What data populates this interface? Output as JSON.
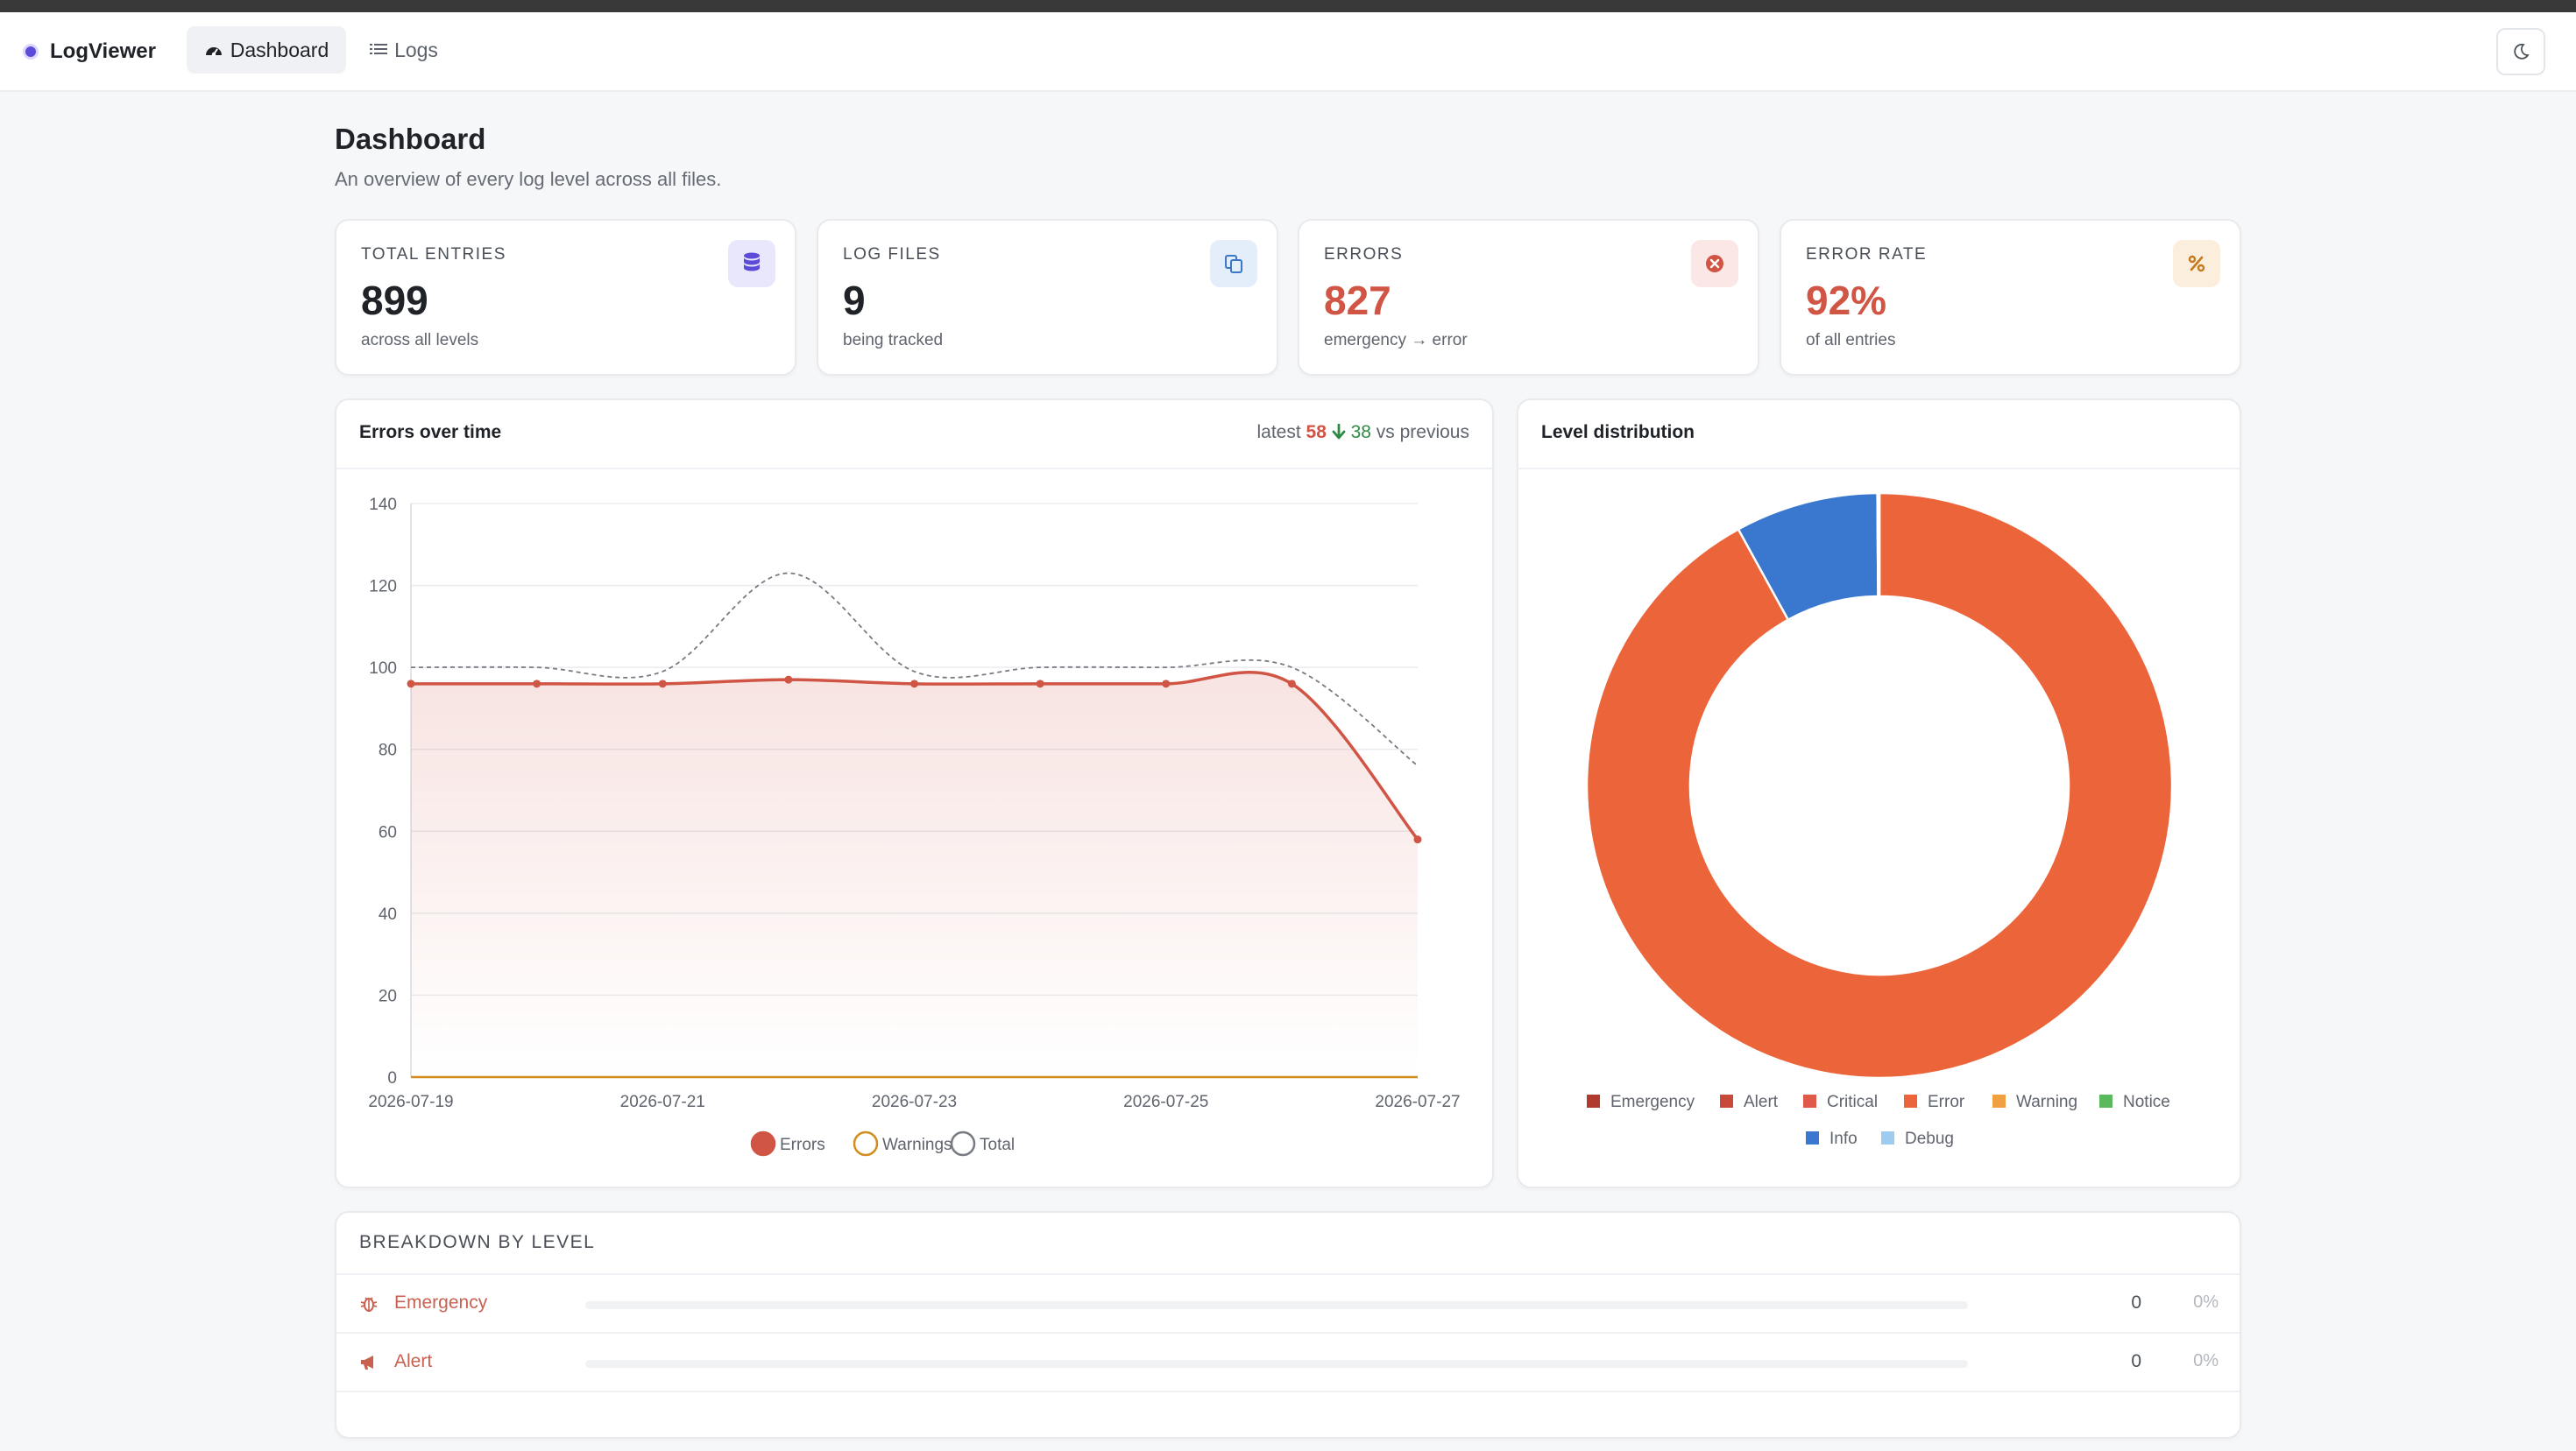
{
  "nav": {
    "brand": "LogViewer",
    "dashboard_label": "Dashboard",
    "logs_label": "Logs",
    "theme_icon": "moon-icon"
  },
  "page": {
    "title": "Dashboard",
    "subtitle": "An overview of every log level across all files."
  },
  "stats": [
    {
      "label": "TOTAL ENTRIES",
      "value": "899",
      "note": "across all levels",
      "icon": "database-icon",
      "icon_color": "#5b4bd8",
      "icon_bg": "#e9e7fb"
    },
    {
      "label": "LOG FILES",
      "value": "9",
      "note": "being tracked",
      "icon": "files-icon",
      "icon_color": "#3a78c8",
      "icon_bg": "#e4eefa"
    },
    {
      "label": "ERRORS",
      "value": "827",
      "note": "emergency → error",
      "icon": "x-circle-icon",
      "icon_color": "#d05545",
      "icon_bg": "#fbe8e6"
    },
    {
      "label": "ERROR RATE",
      "value": "92%",
      "note": "of all entries",
      "icon": "percent-icon",
      "icon_color": "#c47a1d",
      "icon_bg": "#fbeedd"
    }
  ],
  "errors_panel": {
    "title": "Errors over time",
    "latest_prefix": "latest",
    "latest_value": "58",
    "delta_value": "38",
    "delta_suffix": "vs previous",
    "legend": [
      {
        "label": "Errors",
        "color": "#d05545"
      },
      {
        "label": "Warnings",
        "color": "#d38c1e"
      },
      {
        "label": "Total",
        "color": "#777b82"
      }
    ]
  },
  "chart_data": [
    {
      "type": "line",
      "x": [
        "2026-07-19",
        "2026-07-20",
        "2026-07-21",
        "2026-07-22",
        "2026-07-23",
        "2026-07-24",
        "2026-07-25",
        "2026-07-26",
        "2026-07-27"
      ],
      "x_tick_labels": [
        "2026-07-19",
        "2026-07-21",
        "2026-07-23",
        "2026-07-25",
        "2026-07-27"
      ],
      "series": [
        {
          "name": "Errors",
          "values": [
            96,
            96,
            96,
            97,
            96,
            96,
            96,
            96,
            58
          ],
          "color": "#d05545"
        },
        {
          "name": "Warnings",
          "values": [
            0,
            0,
            0,
            0,
            0,
            0,
            0,
            0,
            0
          ],
          "color": "#d38c1e"
        },
        {
          "name": "Total",
          "values": [
            100,
            100,
            99,
            123,
            99,
            100,
            100,
            100,
            76
          ],
          "color": "#777b82"
        }
      ],
      "ylim": [
        0,
        140
      ],
      "yticks": [
        0,
        20,
        40,
        60,
        80,
        100,
        120,
        140
      ],
      "grid": true,
      "legend": "bottom"
    },
    {
      "type": "pie",
      "title": "Level distribution",
      "categories": [
        "Emergency",
        "Alert",
        "Critical",
        "Error",
        "Warning",
        "Notice",
        "Info",
        "Debug"
      ],
      "values": [
        0,
        0,
        0,
        827,
        0,
        0,
        71,
        1
      ],
      "colors": [
        "#b03a2e",
        "#c94a3b",
        "#e05a4a",
        "#ec6439",
        "#f0a040",
        "#5cb85c",
        "#3a78cf",
        "#9ecbf0"
      ],
      "legend": "bottom"
    }
  ],
  "distribution_panel": {
    "title": "Level distribution"
  },
  "breakdown": {
    "title": "BREAKDOWN BY LEVEL",
    "rows": [
      {
        "label": "Emergency",
        "count": "0",
        "pct": "0%",
        "icon": "bug-icon"
      },
      {
        "label": "Alert",
        "count": "0",
        "pct": "0%",
        "icon": "megaphone-icon"
      }
    ]
  }
}
